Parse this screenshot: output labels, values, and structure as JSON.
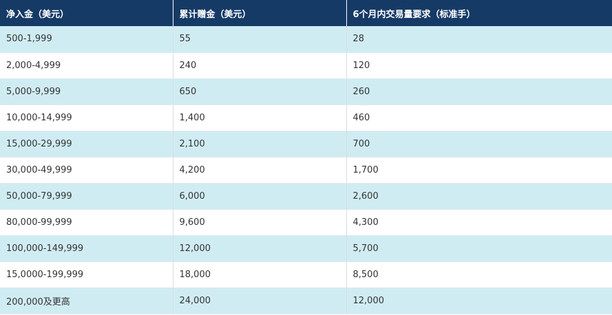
{
  "table": {
    "headers": [
      "净入金（美元）",
      "累计赠金（美元）",
      "6个月内交易量要求（标准手）"
    ],
    "rows": [
      [
        "500-1,999",
        "55",
        "28"
      ],
      [
        "2,000-4,999",
        "240",
        "120"
      ],
      [
        "5,000-9,999",
        "650",
        "260"
      ],
      [
        "10,000-14,999",
        "1,400",
        "460"
      ],
      [
        "15,000-29,999",
        "2,100",
        "700"
      ],
      [
        "30,000-49,999",
        "4,200",
        "1,700"
      ],
      [
        "50,000-79,999",
        "6,000",
        "2,600"
      ],
      [
        "80,000-99,999",
        "9,600",
        "4,300"
      ],
      [
        "100,000-149,999",
        "12,000",
        "5,700"
      ],
      [
        "15,0000-199,999",
        "18,000",
        "8,500"
      ],
      [
        "200,000及更高",
        "24,000",
        "12,000"
      ]
    ],
    "colors": {
      "header_bg": "#163a66",
      "header_text": "#ffffff",
      "stripe_bg": "#d0ecf3",
      "row_bg": "#ffffff",
      "cell_text": "#333333"
    }
  }
}
